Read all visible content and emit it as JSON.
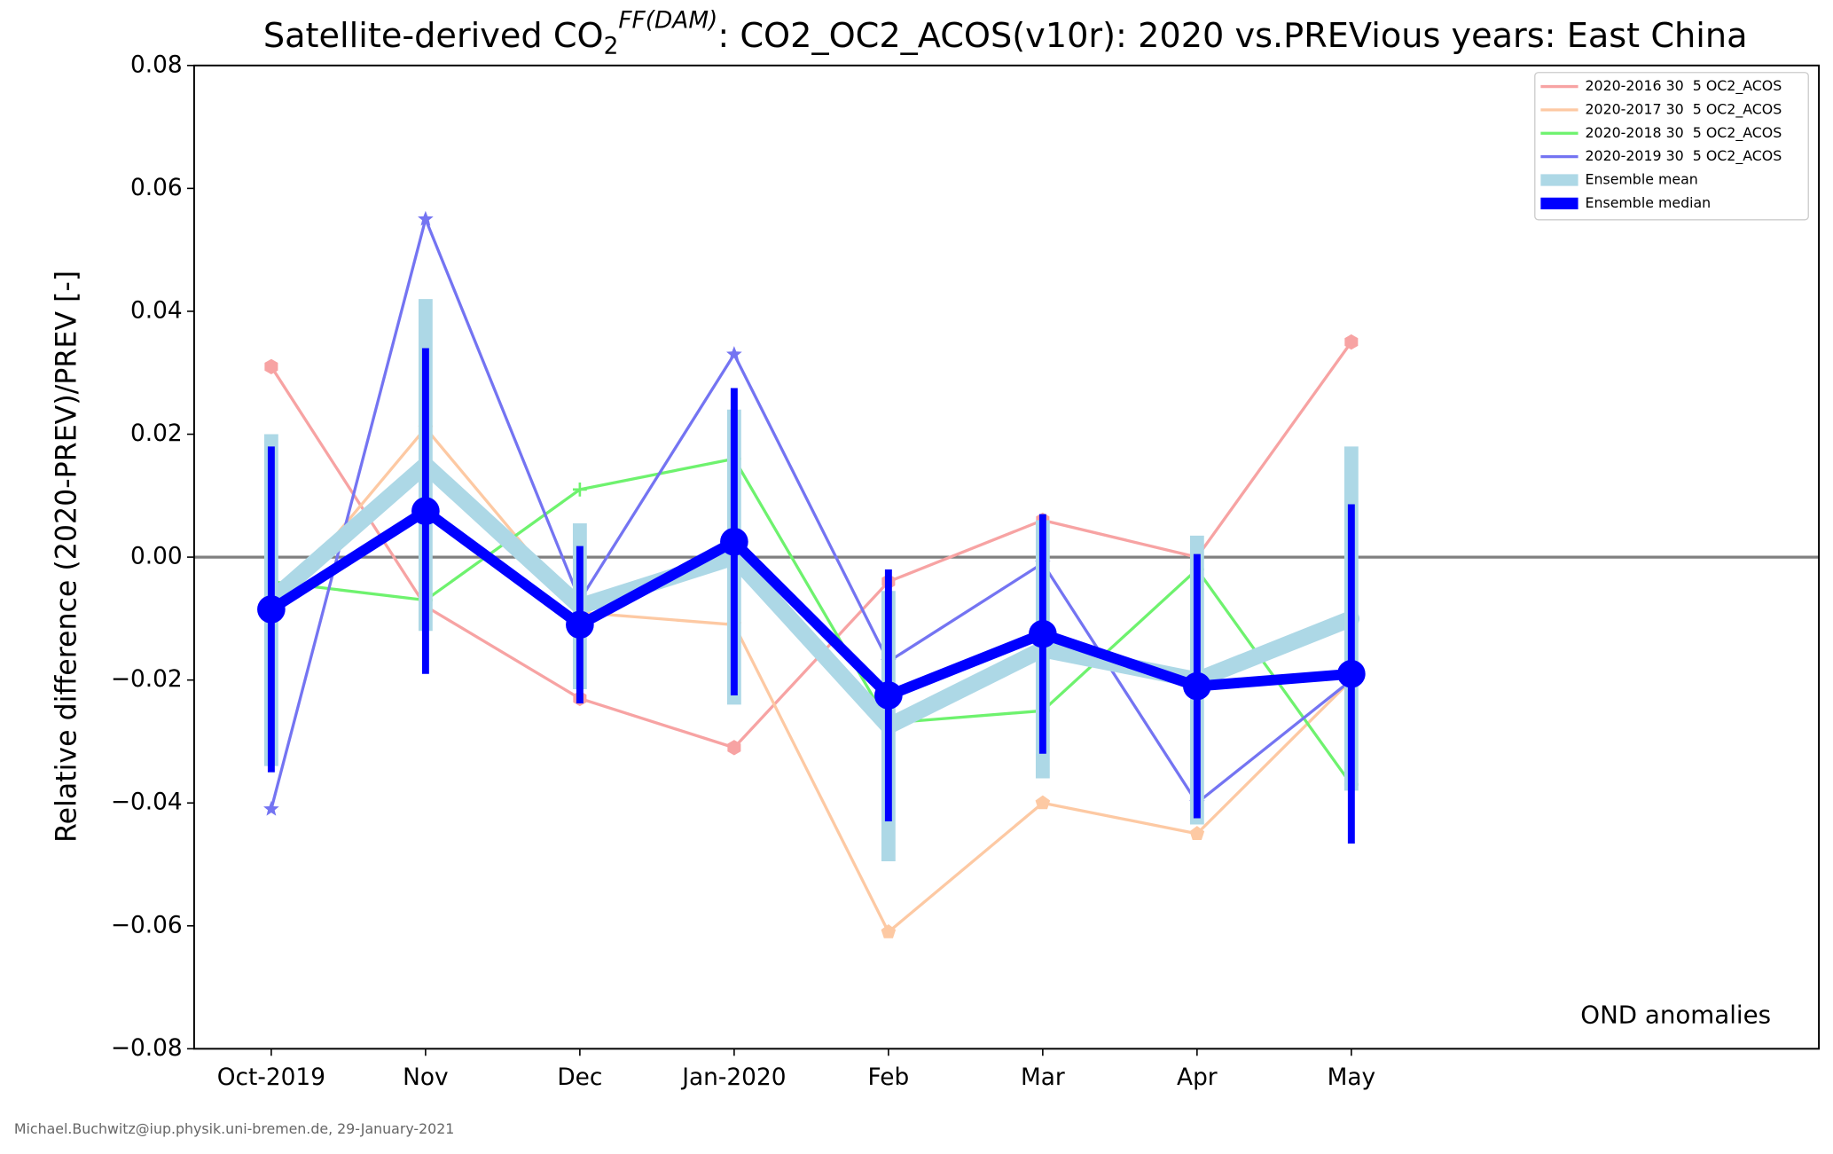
{
  "chart_data": {
    "type": "line",
    "title_parts": [
      "Satellite-derived CO",
      "2",
      "FF(DAM)",
      ": CO2_OC2_ACOS(v10r): 2020 vs.PREVious years: East China"
    ],
    "ylabel": "Relative difference (2020-PREV)/PREV [-]",
    "annotation": "OND anomalies",
    "footer": "Michael.Buchwitz@iup.physik.uni-bremen.de, 29-January-2021",
    "categories": [
      "Oct-2019",
      "Nov",
      "Dec",
      "Jan-2020",
      "Feb",
      "Mar",
      "Apr",
      "May"
    ],
    "ylim": [
      -0.08,
      0.08
    ],
    "yticks": [
      {
        "value": -0.08,
        "label": "−0.08"
      },
      {
        "value": -0.06,
        "label": "−0.06"
      },
      {
        "value": -0.04,
        "label": "−0.04"
      },
      {
        "value": -0.02,
        "label": "−0.02"
      },
      {
        "value": 0,
        "label": "0.00"
      },
      {
        "value": 0.02,
        "label": "0.02"
      },
      {
        "value": 0.04,
        "label": "0.04"
      },
      {
        "value": 0.06,
        "label": "0.06"
      },
      {
        "value": 0.08,
        "label": "0.08"
      }
    ],
    "reference_line": 0,
    "legend": "upper right",
    "series": [
      {
        "name": "2020-2016 30  5 OC2_ACOS",
        "color": "#f7a3a3",
        "marker": "hexagon",
        "values": [
          0.031,
          -0.008,
          -0.023,
          -0.031,
          -0.004,
          0.006,
          0.0,
          0.035
        ]
      },
      {
        "name": "2020-2017 30  5 OC2_ACOS",
        "color": "#fdc9a3",
        "marker": "pentagon",
        "values": [
          -0.009,
          0.021,
          -0.009,
          -0.011,
          -0.061,
          -0.04,
          -0.045,
          -0.02
        ]
      },
      {
        "name": "2020-2018 30  5 OC2_ACOS",
        "color": "#6ef26e",
        "marker": "plus",
        "values": [
          -0.004,
          -0.007,
          0.011,
          0.016,
          -0.027,
          -0.025,
          -0.002,
          -0.037
        ]
      },
      {
        "name": "2020-2019 30  5 OC2_ACOS",
        "color": "#7474f2",
        "marker": "star",
        "values": [
          -0.041,
          0.055,
          -0.007,
          0.033,
          -0.017,
          -0.001,
          -0.04,
          -0.02
        ]
      },
      {
        "name": "Ensemble mean",
        "color": "#add8e6",
        "marker": "none",
        "values": [
          -0.007,
          0.015,
          -0.008,
          0.0,
          -0.0275,
          -0.015,
          -0.02,
          -0.01
        ],
        "errors": [
          0.027,
          0.027,
          0.0135,
          0.024,
          0.022,
          0.021,
          0.0235,
          0.028
        ]
      },
      {
        "name": "Ensemble median",
        "color": "#0000ff",
        "marker": "circle",
        "values": [
          -0.0085,
          0.0075,
          -0.011,
          0.0025,
          -0.0225,
          -0.0125,
          -0.021,
          -0.019
        ],
        "errors": [
          0.0265,
          0.0265,
          0.0128,
          0.025,
          0.0205,
          0.0195,
          0.0215,
          0.0276
        ]
      }
    ]
  }
}
